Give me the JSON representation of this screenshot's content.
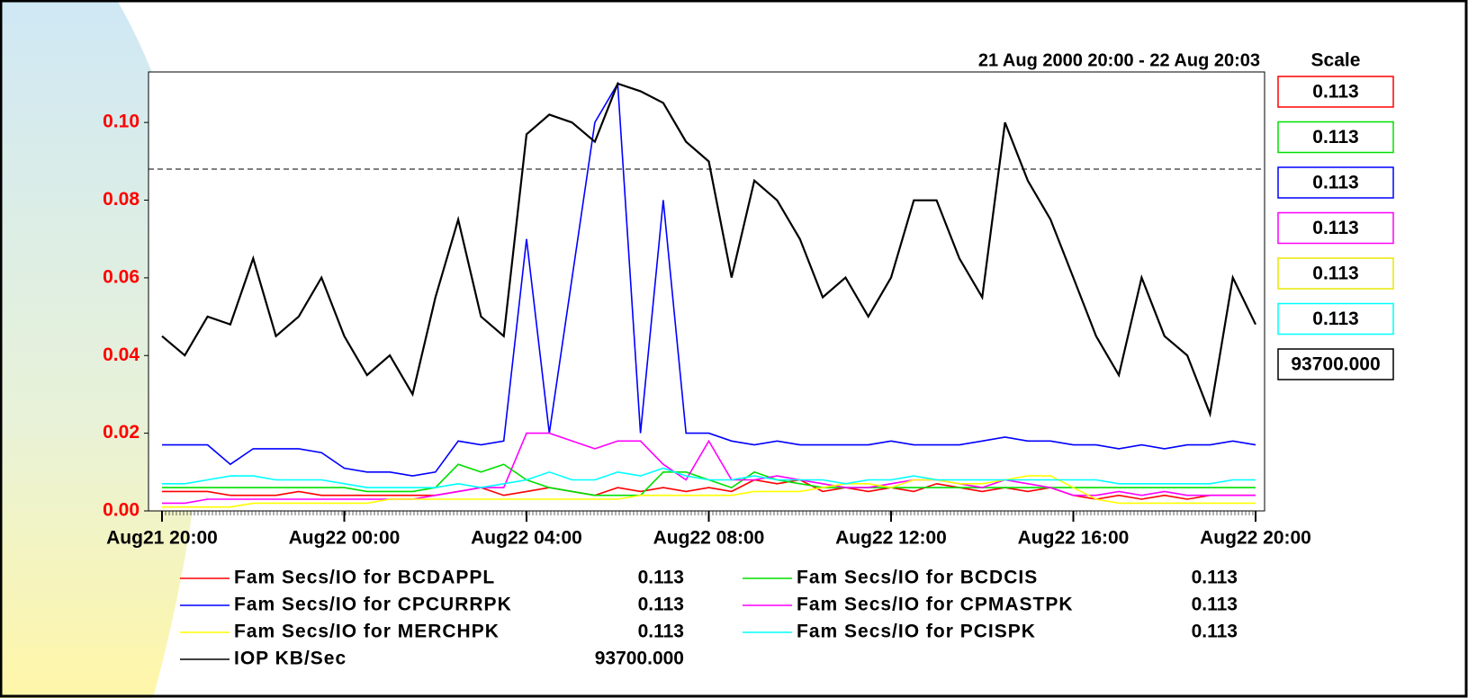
{
  "chart_data": {
    "type": "line",
    "date_range": "21 Aug 2000 20:00 - 22 Aug 20:03",
    "scale_title": "Scale",
    "x": [
      "2000-08-21T20:00",
      "2000-08-21T20:30",
      "2000-08-21T21:00",
      "2000-08-21T21:30",
      "2000-08-21T22:00",
      "2000-08-21T22:30",
      "2000-08-21T23:00",
      "2000-08-21T23:30",
      "2000-08-22T00:00",
      "2000-08-22T00:30",
      "2000-08-22T01:00",
      "2000-08-22T01:30",
      "2000-08-22T02:00",
      "2000-08-22T02:30",
      "2000-08-22T03:00",
      "2000-08-22T03:30",
      "2000-08-22T04:00",
      "2000-08-22T04:30",
      "2000-08-22T05:00",
      "2000-08-22T05:30",
      "2000-08-22T06:00",
      "2000-08-22T06:30",
      "2000-08-22T07:00",
      "2000-08-22T07:30",
      "2000-08-22T08:00",
      "2000-08-22T08:30",
      "2000-08-22T09:00",
      "2000-08-22T09:30",
      "2000-08-22T10:00",
      "2000-08-22T10:30",
      "2000-08-22T11:00",
      "2000-08-22T11:30",
      "2000-08-22T12:00",
      "2000-08-22T12:30",
      "2000-08-22T13:00",
      "2000-08-22T13:30",
      "2000-08-22T14:00",
      "2000-08-22T14:30",
      "2000-08-22T15:00",
      "2000-08-22T15:30",
      "2000-08-22T16:00",
      "2000-08-22T16:30",
      "2000-08-22T17:00",
      "2000-08-22T17:30",
      "2000-08-22T18:00",
      "2000-08-22T18:30",
      "2000-08-22T19:00",
      "2000-08-22T19:30",
      "2000-08-22T20:00"
    ],
    "xlim": [
      "2000-08-21T20:00",
      "2000-08-22T20:00"
    ],
    "xticks": [
      {
        "value": "2000-08-21T20:00",
        "label": "Aug21 20:00"
      },
      {
        "value": "2000-08-22T00:00",
        "label": "Aug22 00:00"
      },
      {
        "value": "2000-08-22T04:00",
        "label": "Aug22 04:00"
      },
      {
        "value": "2000-08-22T08:00",
        "label": "Aug22 08:00"
      },
      {
        "value": "2000-08-22T12:00",
        "label": "Aug22 12:00"
      },
      {
        "value": "2000-08-22T16:00",
        "label": "Aug22 16:00"
      },
      {
        "value": "2000-08-22T20:00",
        "label": "Aug22 20:00"
      }
    ],
    "ylim": [
      0,
      0.113
    ],
    "yticks": [
      {
        "value": 0,
        "label": "0.00"
      },
      {
        "value": 0.02,
        "label": "0.02"
      },
      {
        "value": 0.04,
        "label": "0.04"
      },
      {
        "value": 0.06,
        "label": "0.06"
      },
      {
        "value": 0.08,
        "label": "0.08"
      },
      {
        "value": 0.1,
        "label": "0.10"
      }
    ],
    "y2lim": [
      0,
      93700
    ],
    "reference_line": 0.088,
    "series": [
      {
        "name": "Fam Secs/IO for BCDAPPL",
        "color": "#ff0000",
        "scale": 0.113,
        "values": [
          0.005,
          0.005,
          0.005,
          0.004,
          0.004,
          0.004,
          0.005,
          0.004,
          0.004,
          0.004,
          0.004,
          0.004,
          0.004,
          0.005,
          0.006,
          0.004,
          0.005,
          0.006,
          0.005,
          0.004,
          0.006,
          0.005,
          0.006,
          0.005,
          0.006,
          0.005,
          0.008,
          0.007,
          0.008,
          0.005,
          0.006,
          0.005,
          0.006,
          0.005,
          0.007,
          0.006,
          0.005,
          0.006,
          0.005,
          0.006,
          0.004,
          0.003,
          0.004,
          0.003,
          0.004,
          0.003,
          0.004,
          0.004,
          0.004
        ]
      },
      {
        "name": "Fam Secs/IO for BCDCIS",
        "color": "#00e000",
        "scale": 0.113,
        "values": [
          0.006,
          0.006,
          0.006,
          0.006,
          0.006,
          0.006,
          0.006,
          0.006,
          0.006,
          0.005,
          0.005,
          0.005,
          0.006,
          0.012,
          0.01,
          0.012,
          0.008,
          0.006,
          0.005,
          0.004,
          0.004,
          0.004,
          0.01,
          0.01,
          0.008,
          0.006,
          0.01,
          0.008,
          0.007,
          0.006,
          0.006,
          0.006,
          0.006,
          0.006,
          0.006,
          0.006,
          0.006,
          0.006,
          0.006,
          0.006,
          0.006,
          0.006,
          0.006,
          0.006,
          0.006,
          0.006,
          0.006,
          0.006,
          0.006
        ]
      },
      {
        "name": "Fam Secs/IO for CPCURRPK",
        "color": "#0000ff",
        "scale": 0.113,
        "values": [
          0.017,
          0.017,
          0.017,
          0.012,
          0.016,
          0.016,
          0.016,
          0.015,
          0.011,
          0.01,
          0.01,
          0.009,
          0.01,
          0.018,
          0.017,
          0.018,
          0.07,
          0.02,
          0.06,
          0.1,
          0.11,
          0.02,
          0.08,
          0.02,
          0.02,
          0.018,
          0.017,
          0.018,
          0.017,
          0.017,
          0.017,
          0.017,
          0.018,
          0.017,
          0.017,
          0.017,
          0.018,
          0.019,
          0.018,
          0.018,
          0.017,
          0.017,
          0.016,
          0.017,
          0.016,
          0.017,
          0.017,
          0.018,
          0.017
        ]
      },
      {
        "name": "Fam Secs/IO for CPMASTPK",
        "color": "#ff00ff",
        "scale": 0.113,
        "values": [
          0.002,
          0.002,
          0.003,
          0.003,
          0.003,
          0.003,
          0.003,
          0.003,
          0.003,
          0.003,
          0.003,
          0.003,
          0.004,
          0.005,
          0.006,
          0.006,
          0.02,
          0.02,
          0.018,
          0.016,
          0.018,
          0.018,
          0.012,
          0.008,
          0.018,
          0.008,
          0.008,
          0.009,
          0.008,
          0.007,
          0.006,
          0.006,
          0.007,
          0.008,
          0.008,
          0.007,
          0.006,
          0.008,
          0.007,
          0.006,
          0.004,
          0.004,
          0.005,
          0.004,
          0.005,
          0.004,
          0.004,
          0.004,
          0.004
        ]
      },
      {
        "name": "Fam Secs/IO for MERCHPK",
        "color": "#ffff00",
        "scale": 0.113,
        "values": [
          0.001,
          0.001,
          0.001,
          0.001,
          0.002,
          0.002,
          0.002,
          0.002,
          0.002,
          0.002,
          0.003,
          0.003,
          0.003,
          0.003,
          0.003,
          0.003,
          0.003,
          0.003,
          0.003,
          0.003,
          0.003,
          0.004,
          0.004,
          0.004,
          0.004,
          0.004,
          0.005,
          0.005,
          0.005,
          0.006,
          0.007,
          0.007,
          0.006,
          0.008,
          0.008,
          0.007,
          0.007,
          0.008,
          0.009,
          0.009,
          0.006,
          0.003,
          0.002,
          0.002,
          0.002,
          0.002,
          0.002,
          0.002,
          0.002
        ]
      },
      {
        "name": "Fam Secs/IO for PCISPK",
        "color": "#00ffff",
        "scale": 0.113,
        "values": [
          0.007,
          0.007,
          0.008,
          0.009,
          0.009,
          0.008,
          0.008,
          0.008,
          0.007,
          0.006,
          0.006,
          0.006,
          0.006,
          0.007,
          0.006,
          0.007,
          0.008,
          0.01,
          0.008,
          0.008,
          0.01,
          0.009,
          0.011,
          0.009,
          0.008,
          0.008,
          0.009,
          0.008,
          0.008,
          0.008,
          0.007,
          0.008,
          0.008,
          0.009,
          0.008,
          0.008,
          0.008,
          0.008,
          0.008,
          0.008,
          0.008,
          0.008,
          0.007,
          0.007,
          0.007,
          0.007,
          0.007,
          0.008,
          0.008
        ]
      },
      {
        "name": "IOP KB/Sec",
        "color": "#000000",
        "axis": "y2",
        "scale": {
          "value": 93700,
          "label": "93700.000"
        },
        "values": [
          37300,
          33200,
          41500,
          39800,
          53900,
          37300,
          41500,
          49800,
          37300,
          29000,
          33200,
          24900,
          45600,
          62200,
          41500,
          37300,
          80400,
          84600,
          82900,
          78800,
          91200,
          89600,
          87100,
          78800,
          74600,
          49800,
          70500,
          66300,
          58000,
          45600,
          49800,
          41500,
          49800,
          66300,
          66300,
          53900,
          45600,
          82900,
          70500,
          62200,
          49800,
          37300,
          29000,
          49800,
          37300,
          33200,
          20700,
          49800,
          39800
        ]
      }
    ]
  }
}
